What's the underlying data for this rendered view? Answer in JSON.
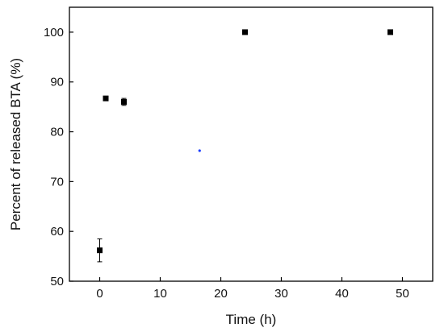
{
  "chart_data": {
    "type": "scatter",
    "title": "",
    "xlabel": "Time (h)",
    "ylabel": "Percent of released BTA (%)",
    "xlim": [
      -5,
      55
    ],
    "ylim": [
      50,
      105
    ],
    "xticks": [
      0,
      10,
      20,
      30,
      40,
      50
    ],
    "yticks": [
      50,
      60,
      70,
      80,
      90,
      100
    ],
    "grid": false,
    "legend": "none",
    "series": [
      {
        "marker": "square",
        "color": "#000000",
        "points": [
          {
            "x": 0,
            "y": 56.2,
            "err": 2.3
          },
          {
            "x": 1,
            "y": 86.7,
            "err": 0.4
          },
          {
            "x": 4,
            "y": 86.0,
            "err": 0.7
          },
          {
            "x": 24,
            "y": 100.0,
            "err": 0.2
          },
          {
            "x": 48,
            "y": 100.0,
            "err": 0.2
          }
        ]
      }
    ],
    "stray_marks": [
      {
        "x": 16.5,
        "y": 76.2,
        "color": "#1a3cff"
      }
    ]
  }
}
